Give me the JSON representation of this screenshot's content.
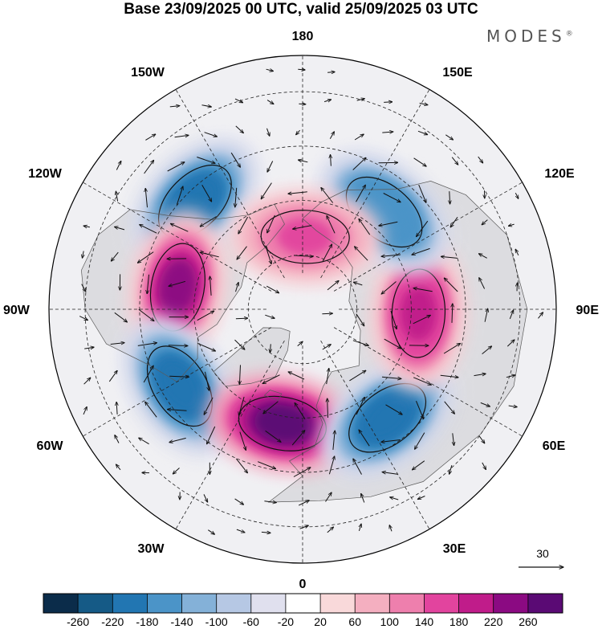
{
  "header": {
    "title": "Base 23/09/2025 00 UTC, valid 25/09/2025 03 UTC",
    "brand": "MODES",
    "brand_mark": "®"
  },
  "map": {
    "projection": "north-polar-stereographic",
    "longitude_labels": {
      "top": "180",
      "bottom": "0",
      "left": "90W",
      "right": "90E",
      "top_left": "150W",
      "top_right": "150E",
      "upper_left": "120W",
      "upper_right": "120E",
      "lower_left": "60W",
      "lower_right": "60E",
      "bottom_left": "30W",
      "bottom_right": "30E"
    },
    "wind_reference": "30",
    "anomaly_centers": [
      {
        "kind": "negative",
        "lon": -135,
        "lat": 48,
        "value": -220
      },
      {
        "kind": "positive",
        "lon": -100,
        "lat": 55,
        "value": 220
      },
      {
        "kind": "negative",
        "lon": -58,
        "lat": 50,
        "value": -220
      },
      {
        "kind": "positive",
        "lon": -10,
        "lat": 58,
        "value": 260
      },
      {
        "kind": "negative",
        "lon": 38,
        "lat": 52,
        "value": -220
      },
      {
        "kind": "positive",
        "lon": 88,
        "lat": 58,
        "value": 180
      },
      {
        "kind": "negative",
        "lon": 140,
        "lat": 55,
        "value": -180
      },
      {
        "kind": "positive",
        "lon": 178,
        "lat": 70,
        "value": 140
      }
    ]
  },
  "colorbar": {
    "ticks": [
      "-260",
      "-220",
      "-180",
      "-140",
      "-100",
      "-60",
      "-20",
      "20",
      "60",
      "100",
      "140",
      "180",
      "220",
      "260"
    ],
    "colors": [
      "#0b2c4a",
      "#155a86",
      "#2276b2",
      "#4b94c8",
      "#84b1d8",
      "#b6c8e4",
      "#e0e0ee",
      "#ffffff",
      "#f9d9da",
      "#f4afc0",
      "#ee7fad",
      "#e2449e",
      "#c01c8a",
      "#8b0a82",
      "#5a0a74"
    ]
  }
}
